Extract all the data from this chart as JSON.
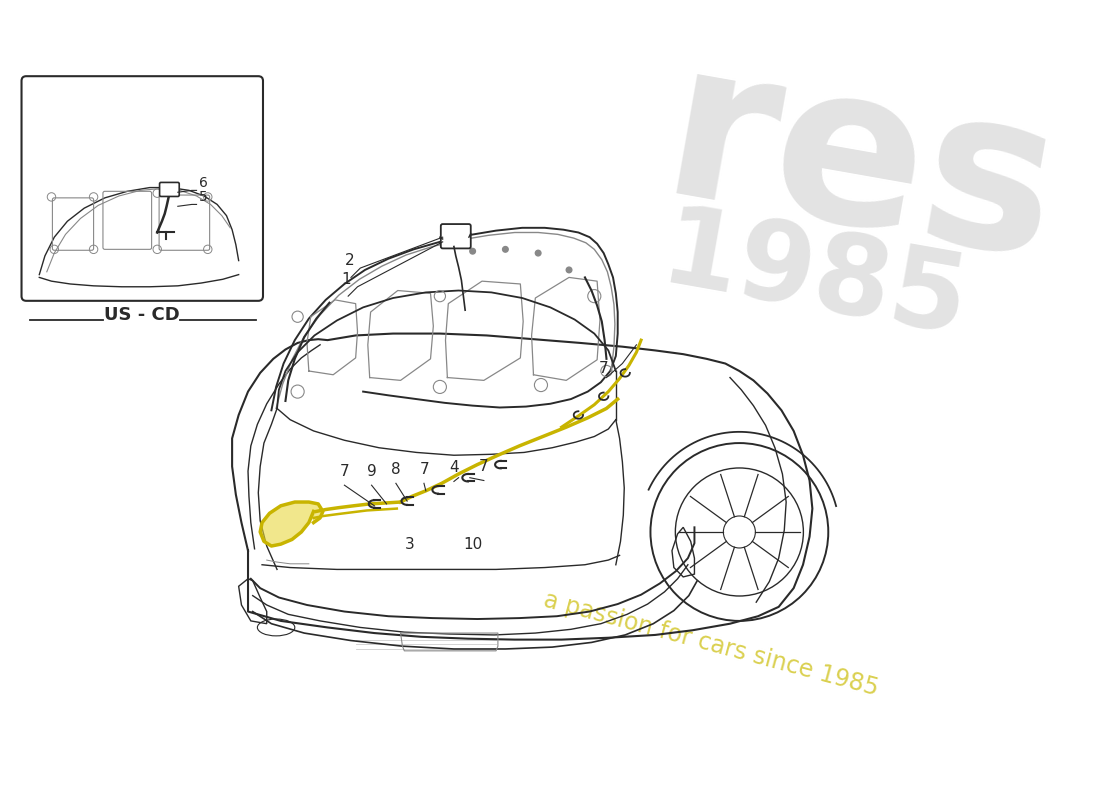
{
  "background_color": "#ffffff",
  "line_color": "#2a2a2a",
  "light_line_color": "#888888",
  "very_light_color": "#cccccc",
  "yellow_wire_color": "#c8b400",
  "yellow_fill_color": "#e8d840",
  "watermark_gray": "#e0e0e0",
  "watermark_yellow": "#d4c832",
  "us_cd_label": "US - CD",
  "fig_width": 11.0,
  "fig_height": 8.0,
  "dpi": 100
}
